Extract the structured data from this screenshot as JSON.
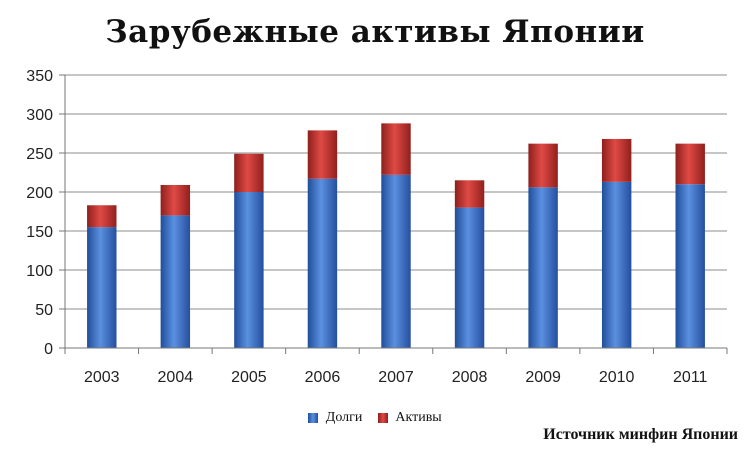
{
  "chart_data": {
    "type": "bar",
    "stacked": true,
    "title": "Зарубежные активы Японии",
    "categories": [
      "2003",
      "2004",
      "2005",
      "2006",
      "2007",
      "2008",
      "2009",
      "2010",
      "2011"
    ],
    "series": [
      {
        "name": "Долги",
        "color": "#3a6fc4",
        "values": [
          155,
          170,
          200,
          217,
          222,
          180,
          206,
          213,
          210
        ]
      },
      {
        "name": "Активы",
        "color": "#c0302e",
        "values": [
          28,
          39,
          49,
          62,
          66,
          35,
          56,
          55,
          52
        ]
      }
    ],
    "ylim": [
      0,
      350
    ],
    "yticks": [
      0,
      50,
      100,
      150,
      200,
      250,
      300,
      350
    ],
    "grid": true,
    "legend": "bottom"
  },
  "source_note": "Источник минфин Японии"
}
